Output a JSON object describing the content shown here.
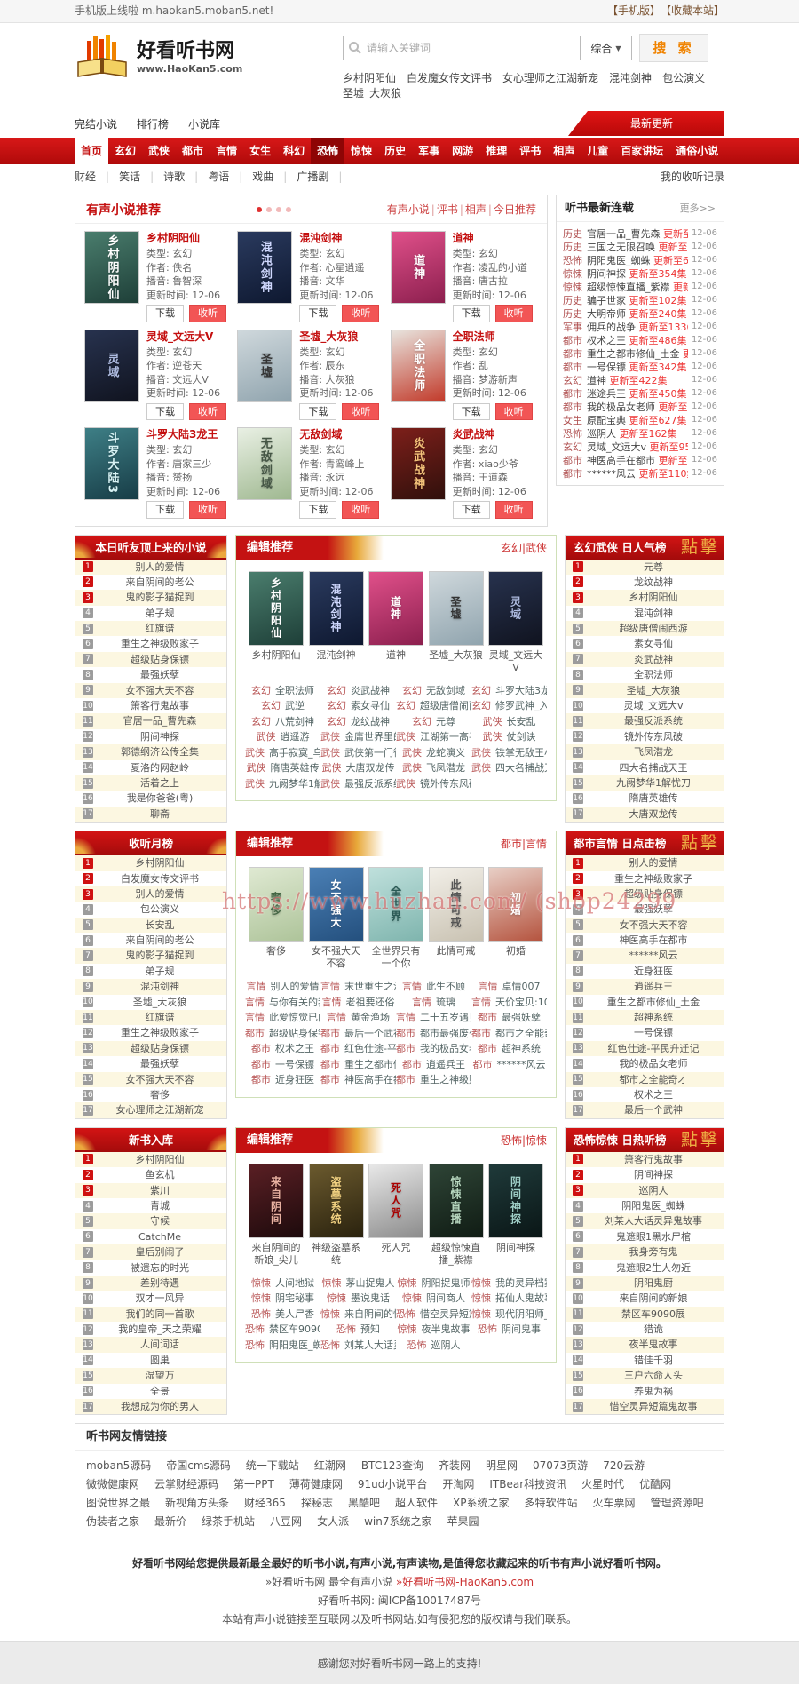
{
  "topbar": {
    "notice": "手机版上线啦 m.haokan5.moban5.net!",
    "links": [
      "【手机版】",
      "【收藏本站】"
    ]
  },
  "header": {
    "site_name": "好看听书网",
    "site_url": "www.HaoKan5.com",
    "search": {
      "placeholder": "请输入关键词",
      "select_label": "综合",
      "button": "搜 索"
    },
    "hot_words": [
      "乡村阴阳仙",
      "白发魔女传文评书",
      "女心理师之江湖新宠",
      "混沌剑神",
      "包公演义",
      "圣墟_大灰狼"
    ]
  },
  "nav": {
    "links": [
      "完结小说",
      "排行榜",
      "小说库"
    ],
    "update_button": "最新更新"
  },
  "mainnav": {
    "items": [
      {
        "label": "首页",
        "state": "active"
      },
      {
        "label": "玄幻"
      },
      {
        "label": "武侠"
      },
      {
        "label": "都市"
      },
      {
        "label": "言情"
      },
      {
        "label": "女生"
      },
      {
        "label": "科幻"
      },
      {
        "label": "恐怖",
        "state": "hot"
      },
      {
        "label": "惊悚"
      },
      {
        "label": "历史"
      },
      {
        "label": "军事"
      },
      {
        "label": "网游"
      },
      {
        "label": "推理"
      },
      {
        "label": "评书"
      },
      {
        "label": "相声"
      },
      {
        "label": "儿童"
      },
      {
        "label": "百家讲坛"
      },
      {
        "label": "通俗小说"
      }
    ]
  },
  "subnav": {
    "items": [
      "财经",
      "笑话",
      "诗歌",
      "粤语",
      "戏曲",
      "广播剧"
    ],
    "right": "我的收听记录"
  },
  "recommend": {
    "title": "有声小说推荐",
    "dots": 4,
    "links": [
      "有声小说",
      "评书",
      "相声",
      "今日推荐"
    ],
    "labels": {
      "type": "类型:",
      "author": "作者:",
      "anchor": "播音:",
      "update": "更新时间:",
      "download": "下载",
      "listen": "收听"
    },
    "books": [
      {
        "title": "乡村阴阳仙",
        "type": "玄幻",
        "author": "佚名",
        "anchor": "鲁智深",
        "date": "12-06",
        "art": "乡村阴阳仙",
        "g": [
          "#4a7d6d",
          "#1e3f38"
        ],
        "tc": "#ffffff"
      },
      {
        "title": "混沌剑神",
        "type": "玄幻",
        "author": "心星逍遥",
        "anchor": "文华",
        "date": "12-06",
        "art": "混沌剑神",
        "g": [
          "#2a3a5e",
          "#0e1830"
        ],
        "tc": "#cfd8ff"
      },
      {
        "title": "道神",
        "type": "玄幻",
        "author": "凌乱的小道",
        "anchor": "唐古拉",
        "date": "12-06",
        "art": "道神",
        "g": [
          "#e0508a",
          "#8c1f4e"
        ],
        "tc": "#ffffff"
      },
      {
        "title": "灵域_文远大V",
        "type": "玄幻",
        "author": "逆苍天",
        "anchor": "文远大V",
        "date": "12-06",
        "art": "灵域",
        "g": [
          "#27324e",
          "#10131f"
        ],
        "tc": "#aebbe0"
      },
      {
        "title": "圣墟_大灰狼",
        "type": "玄幻",
        "author": "辰东",
        "anchor": "大灰狼",
        "date": "12-06",
        "art": "圣墟",
        "g": [
          "#cfd8dc",
          "#90a4ae"
        ],
        "tc": "#333333"
      },
      {
        "title": "全职法师",
        "type": "玄幻",
        "author": "乱",
        "anchor": "梦游新声",
        "date": "12-06",
        "art": "全职法师",
        "g": [
          "#e8e4de",
          "#c23a2a"
        ],
        "tc": "#ffffff"
      },
      {
        "title": "斗罗大陆3龙王",
        "type": "玄幻",
        "author": "唐家三少",
        "anchor": "赟扬",
        "date": "12-06",
        "art": "斗罗大陆3",
        "g": [
          "#3e7f86",
          "#173c46"
        ],
        "tc": "#d8f3f5"
      },
      {
        "title": "无敌剑域",
        "type": "玄幻",
        "author": "青鸾峰上",
        "anchor": "永远",
        "date": "12-06",
        "art": "无敌剑域",
        "g": [
          "#e9f0e4",
          "#9fb890"
        ],
        "tc": "#445544"
      },
      {
        "title": "炎武战神",
        "type": "玄幻",
        "author": "xiao少爷",
        "anchor": "王道森",
        "date": "12-06",
        "art": "炎武战神",
        "g": [
          "#7d1f1a",
          "#30100c"
        ],
        "tc": "#f3c27a"
      }
    ]
  },
  "serial": {
    "title": "听书最新连载",
    "more": "更多>>",
    "rows": [
      {
        "cat": "历史",
        "title": "官居一品_曹先森",
        "ep": "更新至",
        "date": "12-06"
      },
      {
        "cat": "历史",
        "title": "三国之无限召唤",
        "ep": "更新至",
        "date": "12-06"
      },
      {
        "cat": "恐怖",
        "title": "阴阳鬼医_蜘蛛",
        "ep": "更新至652",
        "date": "12-06"
      },
      {
        "cat": "惊悚",
        "title": "阴间神探",
        "ep": "更新至354集",
        "date": "12-06"
      },
      {
        "cat": "惊悚",
        "title": "超级惊悚直播_紫襟",
        "ep": "更新至",
        "date": "12-06"
      },
      {
        "cat": "历史",
        "title": "骗子世家",
        "ep": "更新至102集",
        "date": "12-06"
      },
      {
        "cat": "历史",
        "title": "大明帝师",
        "ep": "更新至240集",
        "date": "12-06"
      },
      {
        "cat": "军事",
        "title": "佣兵的战争",
        "ep": "更新至1336集",
        "date": "12-06"
      },
      {
        "cat": "都市",
        "title": "权术之王",
        "ep": "更新至486集",
        "date": "12-06"
      },
      {
        "cat": "都市",
        "title": "重生之都市修仙_土金",
        "ep": "更新",
        "date": "12-06"
      },
      {
        "cat": "都市",
        "title": "一号保镖",
        "ep": "更新至342集",
        "date": "12-06"
      },
      {
        "cat": "玄幻",
        "title": "道神",
        "ep": "更新至422集",
        "date": "12-06"
      },
      {
        "cat": "都市",
        "title": "迷途兵王",
        "ep": "更新至450集",
        "date": "12-06"
      },
      {
        "cat": "都市",
        "title": "我的极品女老师",
        "ep": "更新至",
        "date": "12-06"
      },
      {
        "cat": "女生",
        "title": "原配宝典",
        "ep": "更新至627集",
        "date": "12-06"
      },
      {
        "cat": "恐怖",
        "title": "巡阴人",
        "ep": "更新至162集",
        "date": "12-06"
      },
      {
        "cat": "玄幻",
        "title": "灵域_文远大v",
        "ep": "更新至957",
        "date": "12-06"
      },
      {
        "cat": "都市",
        "title": "神医高手在都市",
        "ep": "更新至",
        "date": "12-06"
      },
      {
        "cat": "都市",
        "title": "******风云",
        "ep": "更新至110集",
        "date": "12-06"
      }
    ]
  },
  "watermark": "https://www.huzhan.com/ (shop24299",
  "bands": [
    {
      "left": {
        "title": "本日听友顶上来的小说",
        "items": [
          "别人的爱情",
          "来自阴间的老公",
          "鬼的影子猫捉到",
          "弟子规",
          "红旗谱",
          "重生之神级败家子",
          "超级贴身保镖",
          "最强妖孽",
          "女不强大天不容",
          "箫客行鬼故事",
          "官居一品_曹先森",
          "阴间神探",
          "郭德纲济公传全集",
          "夏洛的网赵岭",
          "活着之上",
          "我是你爸爸(粤)",
          "聊斋"
        ]
      },
      "mid": {
        "title": "编辑推荐",
        "cats": "玄幻|武侠",
        "watermark": false,
        "covers": [
          {
            "name": "乡村阴阳仙",
            "art": "乡村阴阳仙",
            "g": [
              "#4a7d6d",
              "#1e3f38"
            ],
            "tc": "#ffffff"
          },
          {
            "name": "混沌剑神",
            "art": "混沌剑神",
            "g": [
              "#2a3a5e",
              "#0e1830"
            ],
            "tc": "#cfd8ff"
          },
          {
            "name": "道神",
            "art": "道神",
            "g": [
              "#e0508a",
              "#8c1f4e"
            ],
            "tc": "#ffffff"
          },
          {
            "name": "圣墟_大灰狼",
            "art": "圣墟",
            "g": [
              "#cfd8dc",
              "#90a4ae"
            ],
            "tc": "#333333"
          },
          {
            "name": "灵域_文远大V",
            "art": "灵域",
            "g": [
              "#27324e",
              "#10131f"
            ],
            "tc": "#aebbe0"
          }
        ],
        "links": [
          [
            "玄幻",
            "全职法师"
          ],
          [
            "玄幻",
            "炎武战神"
          ],
          [
            "玄幻",
            "无敌剑域"
          ],
          [
            "玄幻",
            "斗罗大陆3龙王"
          ],
          [
            "玄幻",
            "武逆"
          ],
          [
            "玄幻",
            "素女寻仙"
          ],
          [
            "玄幻",
            "超级唐僧闹西游"
          ],
          [
            "玄幻",
            "修罗武神_入目"
          ],
          [
            "玄幻",
            "八荒剑神"
          ],
          [
            "玄幻",
            "龙纹战神"
          ],
          [
            "玄幻",
            "元尊"
          ],
          [
            "武侠",
            "长安乱"
          ],
          [
            "武侠",
            "逍遥游"
          ],
          [
            "武侠",
            "金庸世界里的道"
          ],
          [
            "武侠",
            "江湖第一高手"
          ],
          [
            "武侠",
            "仗剑诀"
          ],
          [
            "武侠",
            "高手寂寞_乌龙"
          ],
          [
            "武侠",
            "武侠第一门徒"
          ],
          [
            "武侠",
            "龙蛇演义"
          ],
          [
            "武侠",
            "铁掌无敌王小军"
          ],
          [
            "武侠",
            "隋唐英雄传"
          ],
          [
            "武侠",
            "大唐双龙传"
          ],
          [
            "武侠",
            "飞凤潜龙"
          ],
          [
            "武侠",
            "四大名捕战天王"
          ],
          [
            "武侠",
            "九阙梦华1解忧"
          ],
          [
            "武侠",
            "最强反派系统"
          ],
          [
            "武侠",
            "镜外传东风破"
          ]
        ]
      },
      "right": {
        "title": "玄幻武侠 日人气榜",
        "seal": "點擊",
        "items": [
          "元尊",
          "龙纹战神",
          "乡村阴阳仙",
          "混沌剑神",
          "超级唐僧闹西游",
          "素女寻仙",
          "炎武战神",
          "全职法师",
          "圣墟_大灰狼",
          "灵域_文远大v",
          "最强反派系统",
          "镜外传东风破",
          "飞凤潜龙",
          "四大名捕战天王",
          "九阙梦华1解忧刀",
          "隋唐英雄传",
          "大唐双龙传"
        ]
      }
    },
    {
      "left": {
        "title": "收听月榜",
        "items": [
          "乡村阴阳仙",
          "白发魔女传文评书",
          "别人的爱情",
          "包公演义",
          "长安乱",
          "来自阴间的老公",
          "鬼的影子猫捉到",
          "弟子规",
          "混沌剑神",
          "圣墟_大灰狼",
          "红旗谱",
          "重生之神级败家子",
          "超级贴身保镖",
          "最强妖孽",
          "女不强大天不容",
          "奢侈",
          "女心理师之江湖新宠"
        ]
      },
      "mid": {
        "title": "编辑推荐",
        "cats": "都市|言情",
        "watermark": true,
        "covers": [
          {
            "name": "奢侈",
            "art": "奢侈",
            "g": [
              "#dfe9d2",
              "#aec49a"
            ],
            "tc": "#446644"
          },
          {
            "name": "女不强大天不容",
            "art": "女不强大",
            "g": [
              "#4a7fb5",
              "#24507e"
            ],
            "tc": "#ffffff"
          },
          {
            "name": "全世界只有一个你",
            "art": "全世界",
            "g": [
              "#bfe0dc",
              "#7fb5ae"
            ],
            "tc": "#2a5a55"
          },
          {
            "name": "此情可戒",
            "art": "此情可戒",
            "g": [
              "#f2efe8",
              "#c9c2b2"
            ],
            "tc": "#555555"
          },
          {
            "name": "初婚",
            "art": "初婚",
            "g": [
              "#e8cfc6",
              "#b5543f"
            ],
            "tc": "#ffffff"
          }
        ],
        "links": [
          [
            "言情",
            "别人的爱情"
          ],
          [
            "言情",
            "末世重生之温乐"
          ],
          [
            "言情",
            "此生不顾"
          ],
          [
            "言情",
            "卓情007"
          ],
          [
            "言情",
            "与你有关的我都"
          ],
          [
            "言情",
            "老祖要还俗"
          ],
          [
            "言情",
            "琉璃"
          ],
          [
            "言情",
            "天价宝贝:101次"
          ],
          [
            "言情",
            "此爱惊觉已阑珊"
          ],
          [
            "言情",
            "黄金渔场"
          ],
          [
            "言情",
            "二十五岁遇见你"
          ],
          [
            "都市",
            "最强妖孽"
          ],
          [
            "都市",
            "超级贴身保镖"
          ],
          [
            "都市",
            "最后一个武神"
          ],
          [
            "都市",
            "都市最强废少"
          ],
          [
            "都市",
            "都市之全能奇才"
          ],
          [
            "都市",
            "权术之王"
          ],
          [
            "都市",
            "红色仕途-平民"
          ],
          [
            "都市",
            "我的极品女老师"
          ],
          [
            "都市",
            "超神系统"
          ],
          [
            "都市",
            "一号保镖"
          ],
          [
            "都市",
            "重生之都市修仙"
          ],
          [
            "都市",
            "逍遥兵王"
          ],
          [
            "都市",
            "******风云"
          ],
          [
            "都市",
            "近身狂医"
          ],
          [
            "都市",
            "神医高手在都市"
          ],
          [
            "都市",
            "重生之神级败家"
          ]
        ]
      },
      "right": {
        "title": "都市言情 日点击榜",
        "seal": "點擊",
        "items": [
          "别人的爱情",
          "重生之神级败家子",
          "超级贴身保镖",
          "最强妖孽",
          "女不强大天不容",
          "神医高手在都市",
          "******风云",
          "近身狂医",
          "逍遥兵王",
          "重生之都市修仙_土金",
          "超神系统",
          "一号保镖",
          "红色仕途-平民升迁记",
          "我的极品女老师",
          "都市之全能奇才",
          "权术之王",
          "最后一个武神"
        ]
      }
    },
    {
      "left": {
        "title": "新书入库",
        "items": [
          "乡村阴阳仙",
          "鱼玄机",
          "紫川",
          "青城",
          "守候",
          "CatchMe",
          "皇后别闹了",
          "被遗忘的时光",
          "差别待遇",
          "双才一风异",
          "我们的同一首歌",
          "我的皇帝_天之荣耀",
          "人间词话",
          "圆巢",
          "湿望万",
          "全景",
          "我想成为你的男人"
        ]
      },
      "mid": {
        "title": "编辑推荐",
        "cats": "恐怖|惊悚",
        "watermark": false,
        "covers": [
          {
            "name": "来自阴间的新娘_尖儿",
            "art": "来自阴间",
            "g": [
              "#5a1f24",
              "#1d0a0c"
            ],
            "tc": "#e8b0a0"
          },
          {
            "name": "神级盗墓系统",
            "art": "盗墓系统",
            "g": [
              "#6b5a2e",
              "#2a220e"
            ],
            "tc": "#f0d080"
          },
          {
            "name": "死人咒",
            "art": "死人咒",
            "g": [
              "#e8e8e8",
              "#8c8c8c"
            ],
            "tc": "#aa0000"
          },
          {
            "name": "超级惊悚直播_紫襟",
            "art": "惊悚直播",
            "g": [
              "#2e4436",
              "#101c14"
            ],
            "tc": "#b8d8c0"
          },
          {
            "name": "阴间神探",
            "art": "阴间神探",
            "g": [
              "#1f3a3a",
              "#0a1616"
            ],
            "tc": "#9fd0c8"
          }
        ],
        "links": [
          [
            "惊悚",
            "人间地狱"
          ],
          [
            "惊悚",
            "茅山捉鬼人"
          ],
          [
            "惊悚",
            "阴阳捉鬼师"
          ],
          [
            "惊悚",
            "我的灵异档案"
          ],
          [
            "惊悚",
            "阴宅秘事"
          ],
          [
            "惊悚",
            "墨说鬼话"
          ],
          [
            "惊悚",
            "阴间商人"
          ],
          [
            "惊悚",
            "拓仙人鬼故事-"
          ],
          [
            "恐怖",
            "美人尸香"
          ],
          [
            "惊悚",
            "来自阴间的快递"
          ],
          [
            "恐怖",
            "惜空灵异短篇鬼"
          ],
          [
            "惊悚",
            "现代阴阳师_阿"
          ],
          [
            "恐怖",
            "禁区车9090展"
          ],
          [
            "恐怖",
            "预知"
          ],
          [
            "惊悚",
            "夜半鬼故事"
          ],
          [
            "恐怖",
            "阴间鬼事"
          ],
          [
            "恐怖",
            "阴阳鬼医_蜘蛛"
          ],
          [
            "恐怖",
            "刘某人大话灵异"
          ],
          [
            "恐怖",
            "巡阴人"
          ]
        ]
      },
      "right": {
        "title": "恐怖惊悚 日热听榜",
        "seal": "點擊",
        "items": [
          "箫客行鬼故事",
          "阴间神探",
          "巡阴人",
          "阴阳鬼医_蜘蛛",
          "刘某人大话灵异鬼故事",
          "鬼遮眼1黑水尸棺",
          "我身旁有鬼",
          "鬼遮眼2生人勿近",
          "阴阳鬼厨",
          "来自阴间的新娘",
          "禁区车9090展",
          "猎诡",
          "夜半鬼故事",
          "错佳千羽",
          "三户六命人头",
          "养鬼为祸",
          "惜空灵异短篇鬼故事"
        ]
      }
    }
  ],
  "friends": {
    "title": "听书网友情链接",
    "links": [
      "moban5源码",
      "帝国cms源码",
      "统一下载站",
      "红潮网",
      "BTC123查询",
      "齐装网",
      "明星网",
      "07073页游",
      "720云游",
      "微微健康网",
      "云掌财经源码",
      "第一PPT",
      "薄荷健康网",
      "91ud小说平台",
      "开淘网",
      "ITBear科技资讯",
      "火星时代",
      "优酷网",
      "图说世界之最",
      "新视角方头条",
      "财经365",
      "探秘志",
      "黑酷吧",
      "超人软件",
      "XP系统之家",
      "多特软件站",
      "火车票网",
      "管理资源吧",
      "伪装者之家",
      "最新价",
      "绿茶手机站",
      "八豆网",
      "女人派",
      "win7系统之家",
      "苹果园"
    ]
  },
  "footer": {
    "lines": [
      [
        {
          "t": "好看听书网给您提供最新最全最好的听书小说,有声小说,有声读物,是值得您收藏起来的听书有声小说好看听书网。",
          "b": true
        }
      ],
      [
        {
          "t": "»好看听书网 最全有声小说 "
        },
        {
          "t": "»好看听书网-HaoKan5.com",
          "red": true
        }
      ],
      [
        {
          "t": "好看听书网: 闽ICP备10017487号"
        }
      ],
      [
        {
          "t": "本站有声小说链接至互联网以及听书网站,如有侵犯您的版权请与我们联系。"
        }
      ]
    ],
    "thanks": "感谢您对好看听书网一路上的支持!"
  },
  "colors": {
    "accent_red": "#c40f0f",
    "nav_hot": "#8e0505",
    "listen_button": "#f25555",
    "gold": "#f3c04a",
    "alt_row": "#fcf7e1",
    "link_cat": "#b85555"
  }
}
